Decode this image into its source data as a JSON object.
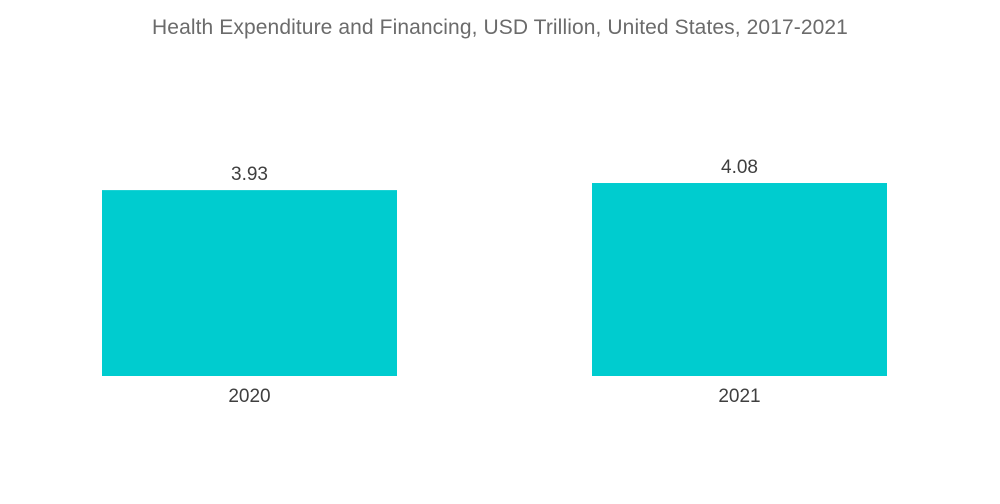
{
  "chart_data": {
    "type": "bar",
    "title": "Health Expenditure and Financing, USD Trillion, United States, 2017-2021",
    "xlabel": "",
    "ylabel": "",
    "categories": [
      "2020",
      "2021"
    ],
    "values": [
      3.93,
      4.08
    ],
    "value_labels": [
      "3.93",
      "4.08"
    ],
    "bar_color": "#00cccf",
    "grid": false,
    "legend": "none"
  }
}
